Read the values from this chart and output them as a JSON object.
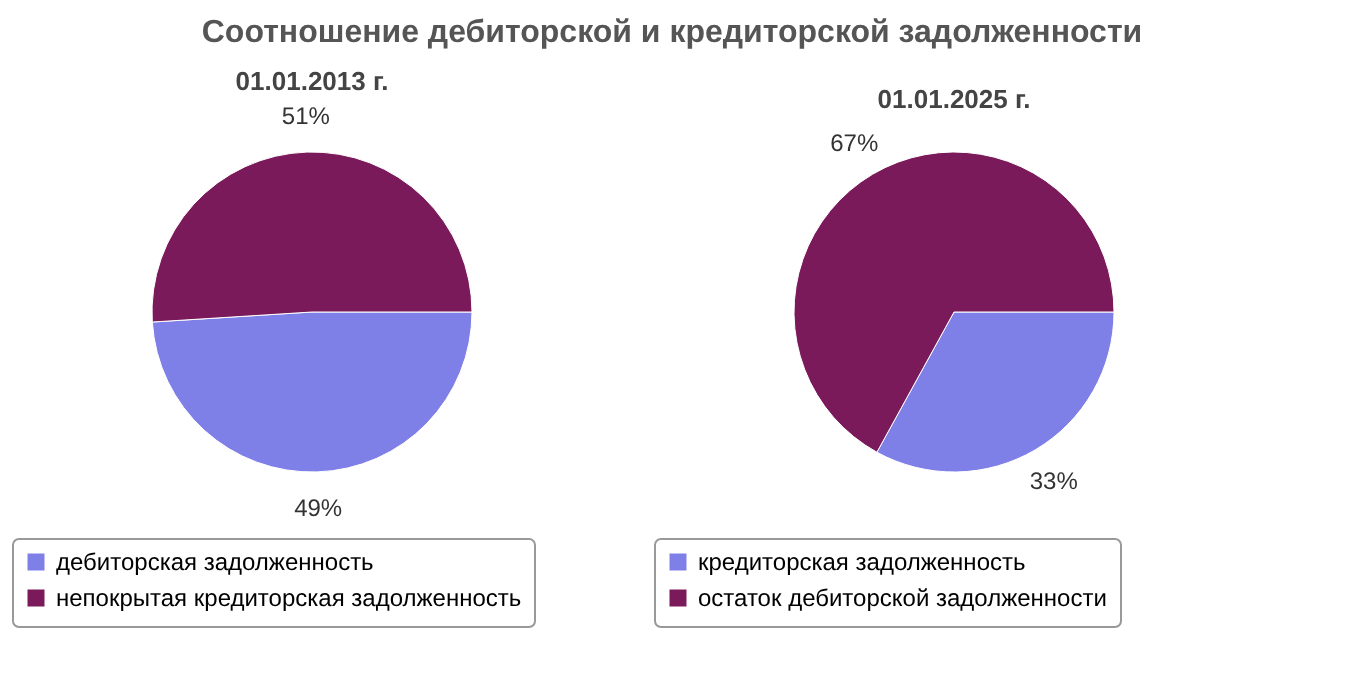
{
  "chart_data": [
    {
      "type": "other",
      "title": "Соотношение дебиторской и кредиторской задолженности"
    },
    {
      "type": "pie",
      "title": "01.01.2013 г.",
      "categories": [
        "дебиторская задолженность",
        "непокрытая кредиторская задолженность"
      ],
      "values": [
        49,
        51
      ],
      "value_labels": [
        "49%",
        "51%"
      ],
      "colors": [
        "#7f7fe8",
        "#7a1a5a"
      ],
      "legend": "bottom"
    },
    {
      "type": "pie",
      "title": "01.01.2025 г.",
      "categories": [
        "кредиторская задолженность",
        "остаток дебиторской задолженности"
      ],
      "values": [
        33,
        67
      ],
      "value_labels": [
        "33%",
        "67%"
      ],
      "colors": [
        "#7f7fe8",
        "#7a1a5a"
      ],
      "legend": "bottom"
    }
  ]
}
